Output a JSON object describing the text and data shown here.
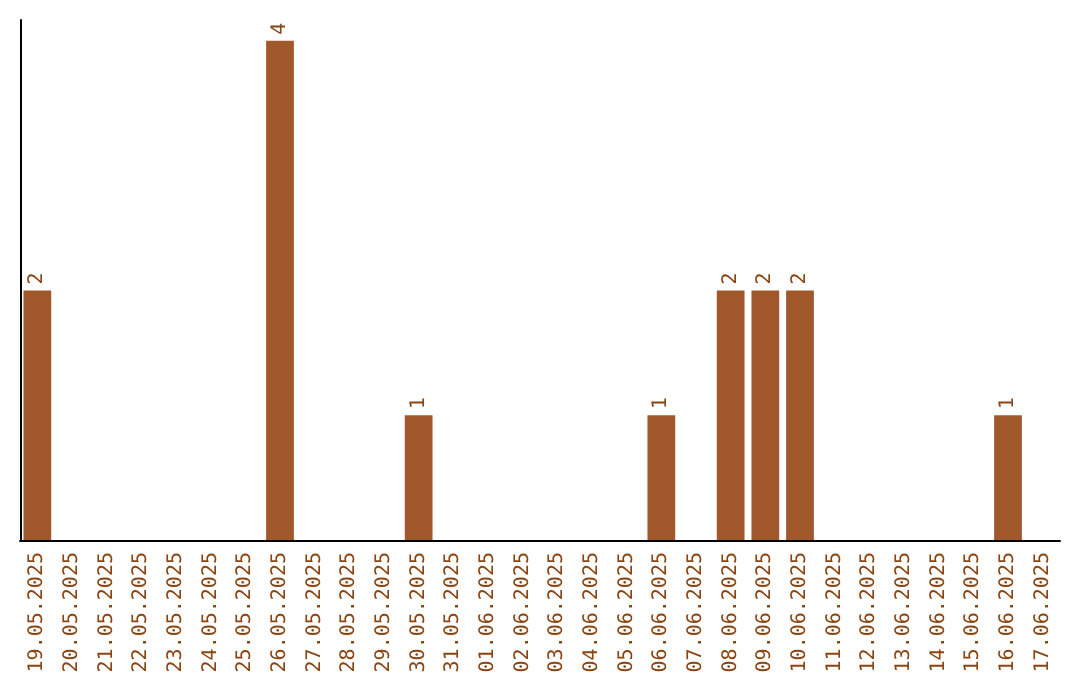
{
  "chart_data": {
    "type": "bar",
    "categories": [
      "19.05.2025",
      "20.05.2025",
      "21.05.2025",
      "22.05.2025",
      "23.05.2025",
      "24.05.2025",
      "25.05.2025",
      "26.05.2025",
      "27.05.2025",
      "28.05.2025",
      "29.05.2025",
      "30.05.2025",
      "31.05.2025",
      "01.06.2025",
      "02.06.2025",
      "03.06.2025",
      "04.06.2025",
      "05.06.2025",
      "06.06.2025",
      "07.06.2025",
      "08.06.2025",
      "09.06.2025",
      "10.06.2025",
      "11.06.2025",
      "12.06.2025",
      "13.06.2025",
      "14.06.2025",
      "15.06.2025",
      "16.06.2025",
      "17.06.2025"
    ],
    "values": [
      2,
      0,
      0,
      0,
      0,
      0,
      0,
      4,
      0,
      0,
      0,
      1,
      0,
      0,
      0,
      0,
      0,
      0,
      1,
      0,
      2,
      2,
      2,
      0,
      0,
      0,
      0,
      0,
      1,
      0
    ],
    "value_labels": [
      "2",
      null,
      null,
      null,
      null,
      null,
      null,
      "4",
      null,
      null,
      null,
      "1",
      null,
      null,
      null,
      null,
      null,
      null,
      "1",
      null,
      "2",
      "2",
      "2",
      null,
      null,
      null,
      null,
      null,
      "1",
      null
    ],
    "color": "#a0582a",
    "tick_labels": "x"
  }
}
